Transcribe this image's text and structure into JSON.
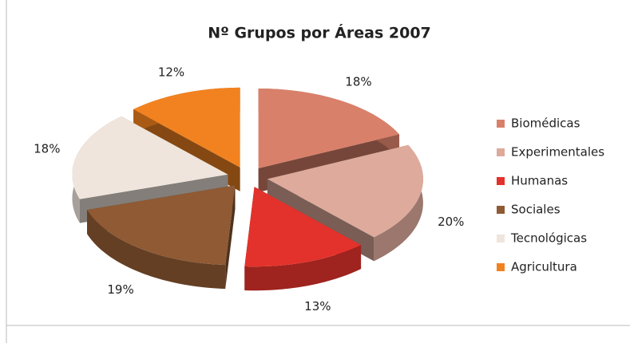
{
  "chart_data": {
    "type": "pie3d",
    "title": "Nº Grupos por Áreas 2007",
    "categories": [
      "Biomédicas",
      "Experimentales",
      "Humanas",
      "Sociales",
      "Tecnológicas",
      "Agricultura"
    ],
    "values": [
      18,
      20,
      13,
      19,
      18,
      12
    ],
    "value_labels": [
      "18%",
      "20%",
      "13%",
      "19%",
      "18%",
      "12%"
    ],
    "colors": [
      "#d9806a",
      "#ddaa9c",
      "#e3322b",
      "#8f5a34",
      "#efe5dc",
      "#f28220"
    ],
    "legend": "right"
  }
}
